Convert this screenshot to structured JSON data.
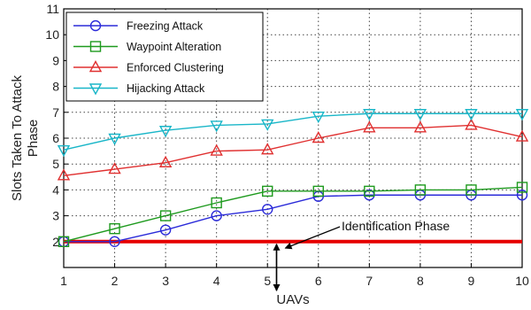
{
  "chart_data": {
    "type": "line",
    "xlabel": "UAVs",
    "ylabel_lines": [
      "Slots Taken To Attack",
      "Phase"
    ],
    "x": [
      1,
      2,
      3,
      4,
      5,
      6,
      7,
      8,
      9,
      10
    ],
    "xlim": [
      1,
      10
    ],
    "ylim": [
      1,
      11
    ],
    "xticks": [
      1,
      2,
      3,
      4,
      5,
      6,
      7,
      8,
      9,
      10
    ],
    "yticks": [
      2,
      3,
      4,
      5,
      6,
      7,
      8,
      9,
      10,
      11
    ],
    "grid": "dotted",
    "legend_position": "top-left",
    "series": [
      {
        "name": "Freezing Attack",
        "color": "#2b2bd9",
        "marker": "circle",
        "values": [
          2.0,
          2.0,
          2.45,
          3.0,
          3.25,
          3.75,
          3.8,
          3.8,
          3.8,
          3.8
        ]
      },
      {
        "name": "Waypoint Alteration",
        "color": "#1e9a1e",
        "marker": "square",
        "values": [
          2.0,
          2.5,
          3.0,
          3.5,
          3.95,
          3.95,
          3.95,
          4.0,
          4.0,
          4.1
        ]
      },
      {
        "name": "Enforced Clustering",
        "color": "#e03030",
        "marker": "triangle-up",
        "values": [
          4.55,
          4.8,
          5.05,
          5.5,
          5.55,
          6.0,
          6.4,
          6.4,
          6.5,
          6.05
        ]
      },
      {
        "name": "Hijacking Attack",
        "color": "#19b6c8",
        "marker": "triangle-down",
        "values": [
          5.55,
          6.0,
          6.3,
          6.5,
          6.55,
          6.85,
          6.95,
          6.95,
          6.95,
          6.95
        ]
      }
    ],
    "reference_line": {
      "y": 2,
      "color": "#e60000"
    },
    "annotation": {
      "text": "Identification Phase",
      "x": 5.3,
      "y": 1.75,
      "double_arrow_y": [
        1.0,
        2.0
      ]
    }
  }
}
